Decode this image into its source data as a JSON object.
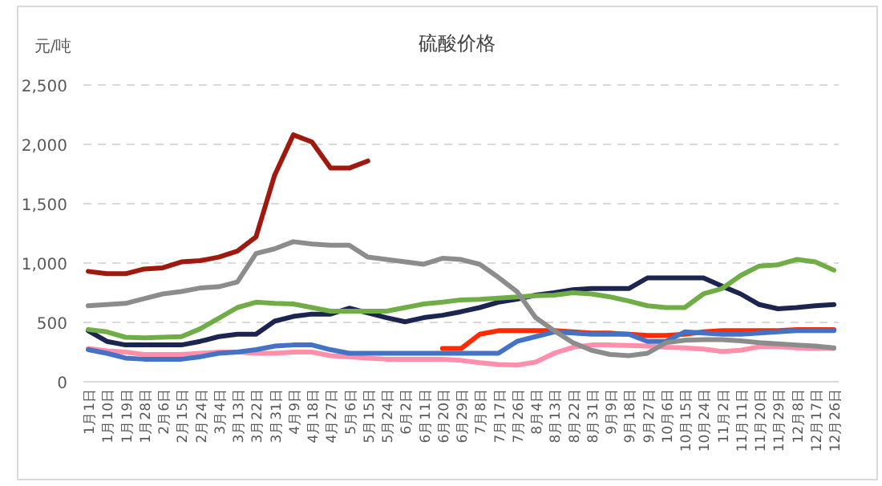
{
  "chart_data": {
    "type": "line",
    "title": "硫酸价格",
    "ylabel": "元/吨",
    "categories": [
      "1月1日",
      "1月10日",
      "1月19日",
      "1月28日",
      "2月6日",
      "2月15日",
      "2月24日",
      "3月4日",
      "3月13日",
      "3月22日",
      "3月31日",
      "4月9日",
      "4月18日",
      "4月27日",
      "5月6日",
      "5月15日",
      "5月24日",
      "6月2日",
      "6月11日",
      "6月20日",
      "6月29日",
      "7月8日",
      "7月17日",
      "7月26日",
      "8月4日",
      "8月13日",
      "8月22日",
      "8月31日",
      "9月9日",
      "9月18日",
      "9月27日",
      "10月6日",
      "10月15日",
      "10月24日",
      "11月2日",
      "11月11日",
      "11月20日",
      "11月29日",
      "12月8日",
      "12月17日",
      "12月26日"
    ],
    "ylim": [
      0,
      2500
    ],
    "yticks": [
      0,
      500,
      {
        "value": 1000,
        "label": "1,000"
      },
      {
        "value": 1500,
        "label": "1,500"
      },
      {
        "value": 2000,
        "label": "2,000"
      },
      {
        "value": 2500,
        "label": "2,500"
      }
    ],
    "grid": "y",
    "line_style": "solid",
    "marker": "none",
    "series": [
      {
        "color": "#ff2a00",
        "values": [
          null,
          null,
          null,
          null,
          null,
          null,
          null,
          null,
          null,
          null,
          null,
          null,
          null,
          null,
          null,
          null,
          null,
          null,
          null,
          280,
          280,
          400,
          430,
          430,
          430,
          430,
          420,
          410,
          410,
          400,
          390,
          390,
          400,
          420,
          430,
          430,
          430,
          430,
          440,
          440,
          440
        ]
      },
      {
        "color": "#ff8fab",
        "values": [
          280,
          260,
          250,
          230,
          230,
          230,
          240,
          250,
          250,
          240,
          240,
          250,
          250,
          220,
          210,
          200,
          190,
          190,
          190,
          190,
          180,
          160,
          145,
          140,
          165,
          240,
          290,
          310,
          310,
          305,
          300,
          290,
          285,
          275,
          255,
          265,
          295,
          295,
          285,
          280,
          280
        ]
      },
      {
        "color": "#4472c4",
        "values": [
          270,
          240,
          200,
          190,
          190,
          190,
          210,
          240,
          250,
          270,
          300,
          310,
          310,
          270,
          240,
          240,
          240,
          240,
          240,
          240,
          240,
          240,
          240,
          340,
          380,
          420,
          410,
          400,
          400,
          400,
          340,
          340,
          420,
          410,
          400,
          400,
          410,
          420,
          430,
          430,
          430
        ]
      },
      {
        "color": "#1c2450",
        "values": [
          430,
          340,
          310,
          310,
          310,
          310,
          340,
          380,
          400,
          400,
          510,
          550,
          570,
          570,
          620,
          580,
          540,
          505,
          540,
          560,
          590,
          625,
          670,
          695,
          730,
          750,
          775,
          785,
          785,
          785,
          875,
          875,
          875,
          875,
          805,
          740,
          650,
          615,
          625,
          640,
          650
        ]
      },
      {
        "color": "#70ad47",
        "values": [
          440,
          420,
          375,
          370,
          375,
          380,
          445,
          535,
          625,
          670,
          660,
          655,
          625,
          595,
          595,
          595,
          595,
          625,
          655,
          670,
          690,
          695,
          705,
          715,
          725,
          730,
          750,
          740,
          715,
          680,
          640,
          625,
          625,
          740,
          785,
          895,
          975,
          985,
          1030,
          1010,
          940
        ]
      },
      {
        "color": "#8c8c8c",
        "values": [
          640,
          650,
          660,
          700,
          740,
          760,
          790,
          800,
          840,
          1080,
          1120,
          1180,
          1160,
          1150,
          1150,
          1050,
          1030,
          1010,
          990,
          1040,
          1030,
          990,
          880,
          760,
          540,
          430,
          330,
          265,
          230,
          220,
          240,
          330,
          350,
          355,
          355,
          345,
          330,
          320,
          310,
          300,
          285
        ]
      },
      {
        "color": "#9e1a0e",
        "values": [
          930,
          910,
          910,
          950,
          960,
          1010,
          1020,
          1050,
          1100,
          1220,
          1740,
          2080,
          2020,
          1800,
          1800,
          1860,
          null,
          null,
          null,
          null,
          null,
          null,
          null,
          null,
          null,
          null,
          null,
          null,
          null,
          null,
          null,
          null,
          null,
          null,
          null,
          null,
          null,
          null,
          null,
          null,
          null
        ]
      }
    ]
  }
}
